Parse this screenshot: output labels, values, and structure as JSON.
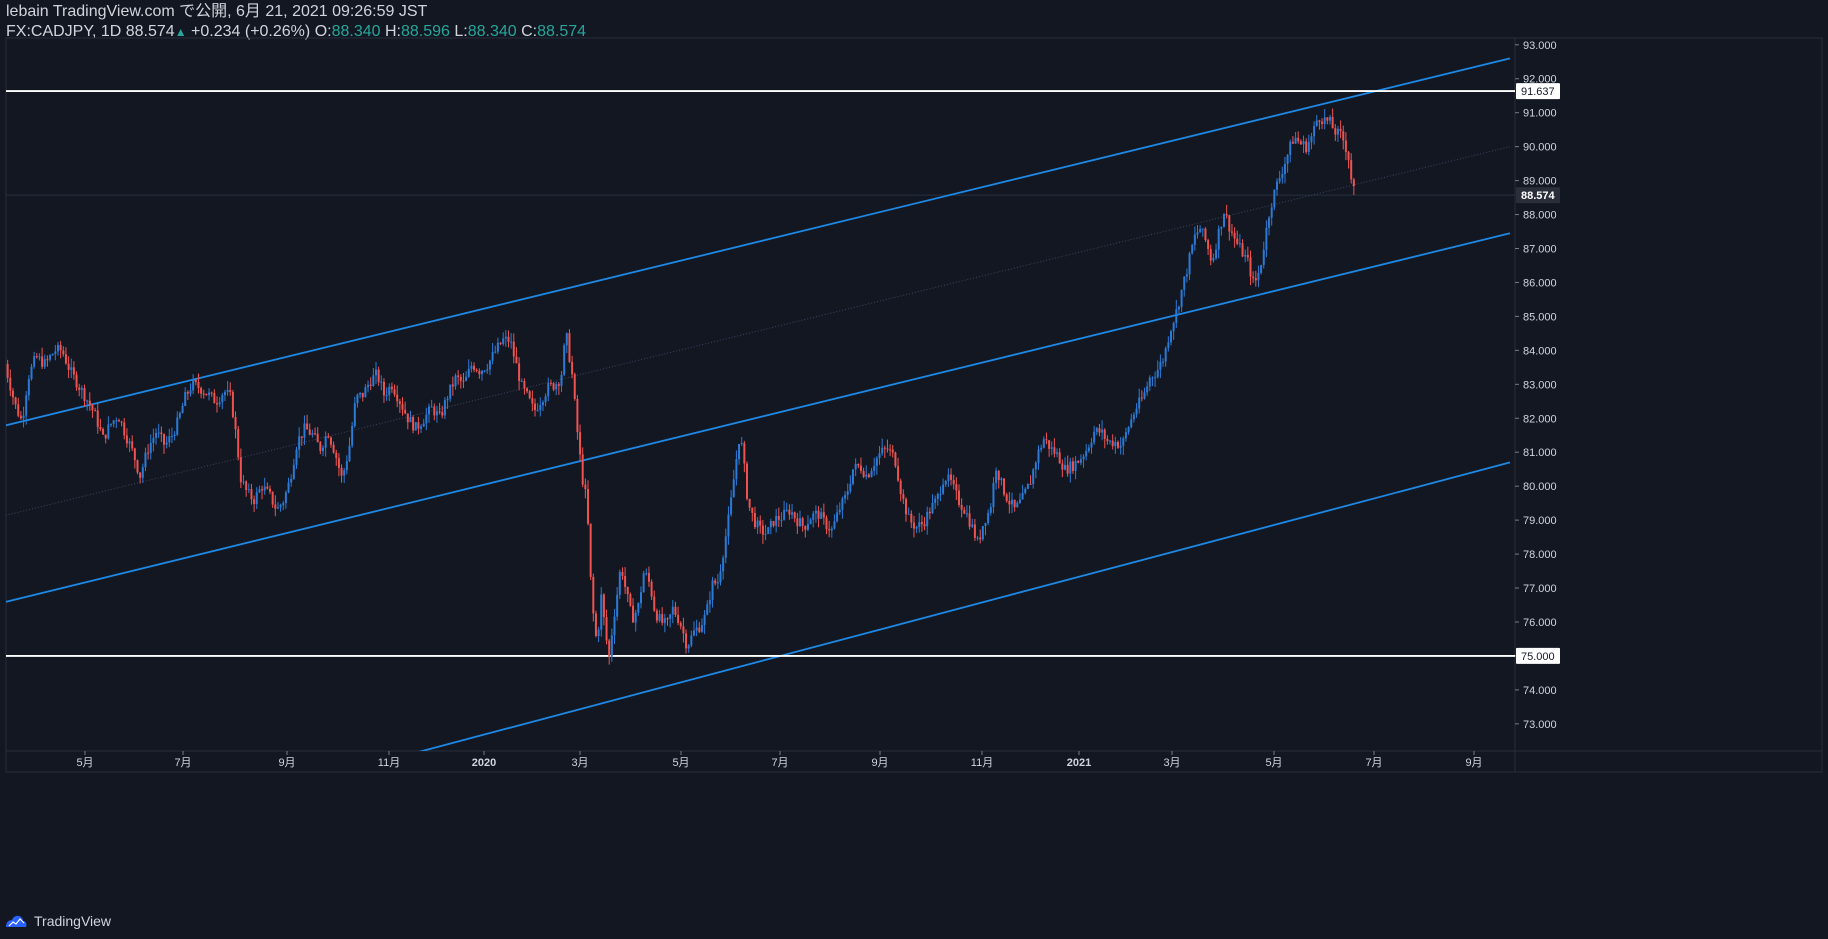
{
  "header": {
    "publish_line": "lebain TradingView.com で公開, 6月 21, 2021 09:26:59 JST",
    "symbol": "FX:CADJPY, 1D",
    "last": "88.574",
    "change": "+0.234 (+0.26%)",
    "o_label": "O:",
    "o_value": "88.340",
    "h_label": "H:",
    "h_value": "88.596",
    "l_label": "L:",
    "l_value": "88.340",
    "c_label": "C:",
    "c_value": "88.574"
  },
  "footer": {
    "brand": "TradingView"
  },
  "colors": {
    "background": "#131722",
    "up": "#2b7bd6",
    "down": "#ef5350",
    "channel": "#1e88e5",
    "hline": "#ffffff",
    "text": "#d1d4dc",
    "ohlc": "#26a69a"
  },
  "chart_data": {
    "type": "candlestick",
    "symbol": "FX:CADJPY",
    "interval": "1D",
    "ylim": [
      72.2,
      93.2
    ],
    "y_ticks": [
      "93.000",
      "92.000",
      "91.000",
      "90.000",
      "89.000",
      "88.000",
      "87.000",
      "86.000",
      "85.000",
      "84.000",
      "83.000",
      "82.000",
      "81.000",
      "80.000",
      "79.000",
      "78.000",
      "77.000",
      "76.000",
      "75.000",
      "74.000",
      "73.000"
    ],
    "x_ticks": [
      "5月",
      "7月",
      "9月",
      "11月",
      "2020",
      "3月",
      "5月",
      "7月",
      "9月",
      "11月",
      "2021",
      "3月",
      "5月",
      "7月",
      "9月"
    ],
    "price_labels": [
      {
        "value": 91.637,
        "text": "91.637",
        "style": "hline"
      },
      {
        "value": 88.574,
        "text": "88.574",
        "style": "last"
      },
      {
        "value": 75.0,
        "text": "75.000",
        "style": "hline"
      }
    ],
    "horizontal_lines": [
      91.637,
      75.0
    ],
    "channel": {
      "x_range": [
        0,
        1510
      ],
      "lines": [
        {
          "name": "upper",
          "y_start": 81.75,
          "y_end": 92.6
        },
        {
          "name": "middle",
          "y_start": 76.55,
          "y_end": 87.45
        },
        {
          "name": "lower",
          "y_start": 68.9,
          "y_end": 80.7
        },
        {
          "name": "mid-dotted",
          "y_start": 79.1,
          "y_end": 90.0
        }
      ]
    },
    "price_path": [
      [
        5,
        83.6
      ],
      [
        15,
        82.4
      ],
      [
        22,
        81.9
      ],
      [
        28,
        83.2
      ],
      [
        36,
        83.8
      ],
      [
        45,
        83.6
      ],
      [
        55,
        84.0
      ],
      [
        62,
        84.0
      ],
      [
        70,
        83.4
      ],
      [
        80,
        82.9
      ],
      [
        88,
        82.5
      ],
      [
        95,
        82.1
      ],
      [
        103,
        81.4
      ],
      [
        110,
        81.8
      ],
      [
        118,
        82.1
      ],
      [
        126,
        81.5
      ],
      [
        134,
        80.9
      ],
      [
        140,
        80.3
      ],
      [
        148,
        81.1
      ],
      [
        156,
        81.6
      ],
      [
        165,
        81.2
      ],
      [
        172,
        81.5
      ],
      [
        178,
        81.9
      ],
      [
        185,
        82.6
      ],
      [
        192,
        83.0
      ],
      [
        200,
        82.9
      ],
      [
        208,
        82.7
      ],
      [
        216,
        82.5
      ],
      [
        224,
        82.8
      ],
      [
        231,
        82.6
      ],
      [
        236,
        81.5
      ],
      [
        241,
        80.2
      ],
      [
        247,
        79.8
      ],
      [
        254,
        79.6
      ],
      [
        262,
        80.0
      ],
      [
        270,
        79.7
      ],
      [
        277,
        79.3
      ],
      [
        284,
        79.6
      ],
      [
        290,
        80.2
      ],
      [
        297,
        81.3
      ],
      [
        305,
        81.7
      ],
      [
        313,
        81.5
      ],
      [
        320,
        81.1
      ],
      [
        328,
        81.6
      ],
      [
        335,
        81.0
      ],
      [
        342,
        80.2
      ],
      [
        349,
        81.1
      ],
      [
        356,
        82.6
      ],
      [
        363,
        82.7
      ],
      [
        370,
        83.1
      ],
      [
        377,
        83.3
      ],
      [
        384,
        82.7
      ],
      [
        392,
        83.0
      ],
      [
        400,
        82.5
      ],
      [
        408,
        82.0
      ],
      [
        416,
        81.7
      ],
      [
        424,
        82.0
      ],
      [
        432,
        82.3
      ],
      [
        440,
        82.0
      ],
      [
        448,
        82.7
      ],
      [
        456,
        83.2
      ],
      [
        464,
        83.0
      ],
      [
        472,
        83.6
      ],
      [
        480,
        83.4
      ],
      [
        488,
        83.6
      ],
      [
        496,
        84.0
      ],
      [
        503,
        84.3
      ],
      [
        510,
        84.3
      ],
      [
        516,
        83.6
      ],
      [
        522,
        82.9
      ],
      [
        528,
        82.6
      ],
      [
        534,
        82.2
      ],
      [
        540,
        82.5
      ],
      [
        548,
        82.9
      ],
      [
        555,
        83.0
      ],
      [
        561,
        83.2
      ],
      [
        566,
        84.5
      ],
      [
        572,
        83.3
      ],
      [
        577,
        81.7
      ],
      [
        582,
        80.3
      ],
      [
        587,
        79.5
      ],
      [
        590,
        77.5
      ],
      [
        593,
        76.3
      ],
      [
        597,
        75.3
      ],
      [
        601,
        76.8
      ],
      [
        605,
        75.8
      ],
      [
        609,
        74.9
      ],
      [
        613,
        76.0
      ],
      [
        617,
        76.8
      ],
      [
        621,
        77.7
      ],
      [
        626,
        76.9
      ],
      [
        632,
        76.1
      ],
      [
        638,
        76.4
      ],
      [
        644,
        77.5
      ],
      [
        650,
        77.1
      ],
      [
        655,
        76.3
      ],
      [
        661,
        76.0
      ],
      [
        667,
        75.9
      ],
      [
        673,
        76.4
      ],
      [
        680,
        76.0
      ],
      [
        687,
        75.3
      ],
      [
        694,
        75.7
      ],
      [
        700,
        75.9
      ],
      [
        706,
        76.2
      ],
      [
        712,
        77.1
      ],
      [
        718,
        77.2
      ],
      [
        724,
        78.2
      ],
      [
        730,
        79.3
      ],
      [
        735,
        80.5
      ],
      [
        740,
        81.6
      ],
      [
        744,
        80.6
      ],
      [
        748,
        79.5
      ],
      [
        754,
        79.0
      ],
      [
        760,
        78.7
      ],
      [
        767,
        78.6
      ],
      [
        774,
        79.0
      ],
      [
        782,
        79.1
      ],
      [
        790,
        79.3
      ],
      [
        797,
        79.0
      ],
      [
        804,
        78.8
      ],
      [
        811,
        79.1
      ],
      [
        818,
        79.2
      ],
      [
        825,
        78.9
      ],
      [
        832,
        78.7
      ],
      [
        839,
        79.3
      ],
      [
        846,
        79.7
      ],
      [
        853,
        80.5
      ],
      [
        860,
        80.6
      ],
      [
        867,
        80.3
      ],
      [
        874,
        80.7
      ],
      [
        881,
        81.0
      ],
      [
        888,
        81.1
      ],
      [
        895,
        80.8
      ],
      [
        902,
        79.7
      ],
      [
        909,
        79.0
      ],
      [
        916,
        78.8
      ],
      [
        923,
        78.9
      ],
      [
        930,
        79.3
      ],
      [
        937,
        79.6
      ],
      [
        944,
        80.3
      ],
      [
        951,
        80.1
      ],
      [
        958,
        79.6
      ],
      [
        965,
        79.3
      ],
      [
        972,
        78.8
      ],
      [
        978,
        78.3
      ],
      [
        984,
        79.0
      ],
      [
        990,
        79.3
      ],
      [
        996,
        80.6
      ],
      [
        1002,
        80.0
      ],
      [
        1008,
        79.6
      ],
      [
        1015,
        79.3
      ],
      [
        1022,
        79.6
      ],
      [
        1030,
        80.1
      ],
      [
        1037,
        80.9
      ],
      [
        1044,
        81.4
      ],
      [
        1051,
        81.1
      ],
      [
        1058,
        80.9
      ],
      [
        1065,
        80.5
      ],
      [
        1072,
        80.6
      ],
      [
        1080,
        80.8
      ],
      [
        1087,
        81.1
      ],
      [
        1094,
        81.6
      ],
      [
        1101,
        81.6
      ],
      [
        1108,
        81.3
      ],
      [
        1115,
        81.3
      ],
      [
        1122,
        81.2
      ],
      [
        1129,
        81.8
      ],
      [
        1136,
        82.3
      ],
      [
        1143,
        82.6
      ],
      [
        1150,
        83.2
      ],
      [
        1157,
        83.4
      ],
      [
        1164,
        83.8
      ],
      [
        1170,
        84.6
      ],
      [
        1176,
        85.1
      ],
      [
        1182,
        85.8
      ],
      [
        1188,
        86.5
      ],
      [
        1194,
        87.3
      ],
      [
        1200,
        87.6
      ],
      [
        1206,
        87.2
      ],
      [
        1212,
        86.6
      ],
      [
        1218,
        87.4
      ],
      [
        1224,
        88.1
      ],
      [
        1230,
        87.6
      ],
      [
        1236,
        87.2
      ],
      [
        1242,
        86.9
      ],
      [
        1248,
        86.6
      ],
      [
        1254,
        85.9
      ],
      [
        1260,
        86.4
      ],
      [
        1265,
        87.3
      ],
      [
        1270,
        88.2
      ],
      [
        1276,
        88.8
      ],
      [
        1282,
        89.3
      ],
      [
        1288,
        89.8
      ],
      [
        1294,
        90.3
      ],
      [
        1300,
        90.1
      ],
      [
        1306,
        90.0
      ],
      [
        1312,
        90.3
      ],
      [
        1318,
        90.9
      ],
      [
        1324,
        90.8
      ],
      [
        1330,
        90.7
      ],
      [
        1336,
        90.4
      ],
      [
        1342,
        90.3
      ],
      [
        1348,
        89.8
      ],
      [
        1352,
        88.9
      ],
      [
        1356,
        88.55
      ]
    ]
  }
}
